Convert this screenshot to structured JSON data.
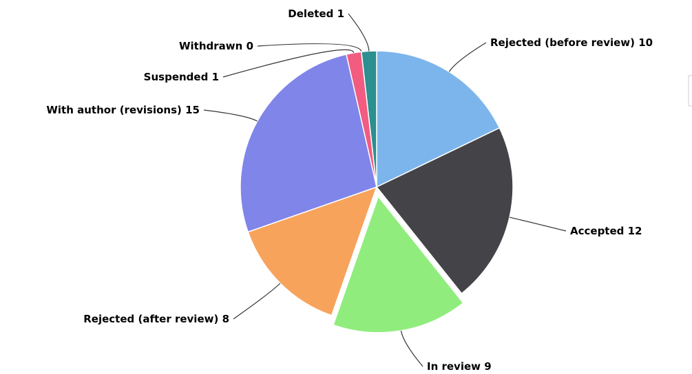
{
  "chart_data": {
    "type": "pie",
    "categories": [
      "Rejected (before review)",
      "Accepted",
      "In review",
      "Rejected (after review)",
      "With author (revisions)",
      "Suspended",
      "Withdrawn",
      "Deleted"
    ],
    "values": [
      10,
      12,
      9,
      8,
      15,
      1,
      0,
      1
    ],
    "colors": [
      "#7cb5ec",
      "#434348",
      "#90ed7d",
      "#f7a35c",
      "#8085e9",
      "#f15c80",
      "#e4d354",
      "#2b908f"
    ],
    "sliced": [
      "In review"
    ]
  }
}
